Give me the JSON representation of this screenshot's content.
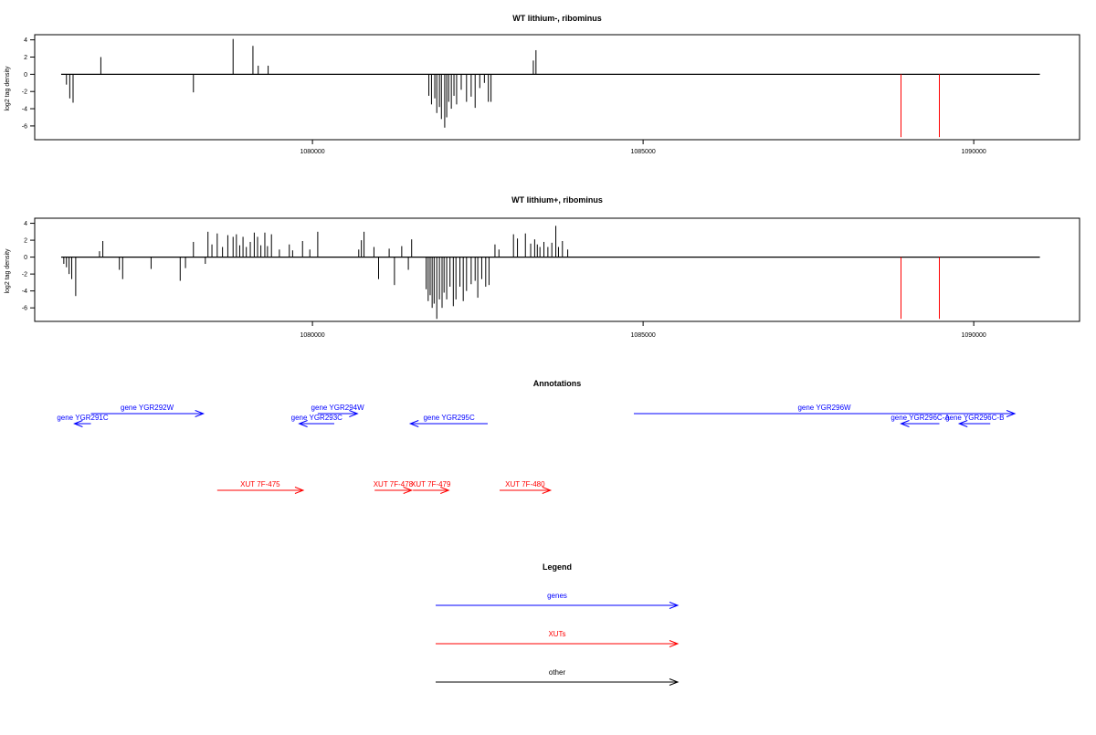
{
  "chart_data": [
    {
      "type": "bar",
      "title": "WT lithium-, ribominus",
      "xlabel": "",
      "ylabel": "log2 tag density",
      "xlim": [
        1075800,
        1091600
      ],
      "ylim": [
        -7.6,
        4.6
      ],
      "xticks": [
        1080000,
        1085000,
        1090000
      ],
      "xtick_labels": [
        "1080000",
        "1085000",
        "1090000"
      ],
      "yticks": [
        -6,
        -4,
        -2,
        0,
        2,
        4
      ],
      "ytick_labels": [
        "-6",
        "-4",
        "-2",
        "0",
        "2",
        "4"
      ],
      "baseline": {
        "x": [
          1076200,
          1091000
        ],
        "y": 0
      },
      "x": [
        1076280,
        1076330,
        1076380,
        1076800,
        1078200,
        1078800,
        1079100,
        1079180,
        1079330,
        1081760,
        1081800,
        1081850,
        1081880,
        1081920,
        1081950,
        1082000,
        1082030,
        1082060,
        1082100,
        1082140,
        1082180,
        1082250,
        1082330,
        1082400,
        1082460,
        1082530,
        1082600,
        1082660,
        1082700,
        1083340,
        1083380
      ],
      "values": [
        -1.2,
        -2.8,
        -3.3,
        2.0,
        -2.1,
        4.1,
        3.3,
        1.0,
        1.0,
        -2.5,
        -3.5,
        -2.8,
        -4.5,
        -3.8,
        -5.2,
        -6.2,
        -5.0,
        -3.2,
        -4.0,
        -2.5,
        -3.5,
        -1.8,
        -3.2,
        -2.6,
        -3.9,
        -1.6,
        -1.0,
        -3.2,
        -3.2,
        1.6,
        2.8
      ],
      "series": [
        {
          "name": "",
          "color": "#ff0000",
          "x": [
            1088900,
            1089480
          ],
          "values": [
            -7.3,
            -7.3
          ]
        }
      ]
    },
    {
      "type": "bar",
      "title": "WT lithium+, ribominus",
      "xlabel": "",
      "ylabel": "log2 tag density",
      "xlim": [
        1075800,
        1091600
      ],
      "ylim": [
        -7.6,
        4.6
      ],
      "xticks": [
        1080000,
        1085000,
        1090000
      ],
      "xtick_labels": [
        "1080000",
        "1085000",
        "1090000"
      ],
      "yticks": [
        -6,
        -4,
        -2,
        0,
        2,
        4
      ],
      "ytick_labels": [
        "-6",
        "-4",
        "-2",
        "0",
        "2",
        "4"
      ],
      "baseline": {
        "x": [
          1076200,
          1091000
        ],
        "y": 0
      },
      "x": [
        1076240,
        1076280,
        1076320,
        1076360,
        1076420,
        1076780,
        1076830,
        1077080,
        1077130,
        1077560,
        1078000,
        1078080,
        1078200,
        1078380,
        1078420,
        1078480,
        1078560,
        1078640,
        1078720,
        1078800,
        1078850,
        1078900,
        1078950,
        1079000,
        1079060,
        1079120,
        1079170,
        1079220,
        1079280,
        1079320,
        1079380,
        1079500,
        1079650,
        1079700,
        1079850,
        1079960,
        1080080,
        1080700,
        1080740,
        1080780,
        1080930,
        1081000,
        1081160,
        1081240,
        1081350,
        1081450,
        1081500,
        1081720,
        1081750,
        1081780,
        1081810,
        1081840,
        1081880,
        1081920,
        1081960,
        1081990,
        1082030,
        1082080,
        1082130,
        1082170,
        1082230,
        1082280,
        1082330,
        1082400,
        1082460,
        1082500,
        1082560,
        1082620,
        1082670,
        1082760,
        1082820,
        1083040,
        1083100,
        1083220,
        1083300,
        1083360,
        1083400,
        1083440,
        1083500,
        1083560,
        1083620,
        1083680,
        1083720,
        1083780,
        1083860
      ],
      "values": [
        -0.8,
        -1.2,
        -2.0,
        -2.6,
        -4.6,
        0.7,
        1.9,
        -1.5,
        -2.6,
        -1.4,
        -2.8,
        -1.3,
        1.8,
        -0.8,
        3.0,
        1.5,
        2.8,
        1.2,
        2.6,
        2.4,
        2.7,
        1.4,
        2.4,
        1.2,
        1.8,
        2.9,
        2.4,
        1.4,
        2.9,
        1.3,
        2.7,
        0.9,
        1.5,
        0.8,
        1.9,
        0.9,
        3.0,
        0.9,
        2.0,
        3.0,
        1.2,
        -2.6,
        1.0,
        -3.3,
        1.3,
        -1.5,
        2.1,
        -3.8,
        -5.2,
        -4.5,
        -6.0,
        -5.5,
        -7.3,
        -5.0,
        -6.0,
        -4.2,
        -5.0,
        -3.5,
        -5.8,
        -5.0,
        -3.5,
        -5.2,
        -4.0,
        -3.2,
        -2.8,
        -4.8,
        -2.6,
        -3.5,
        -3.3,
        1.5,
        0.9,
        2.7,
        2.2,
        2.8,
        1.6,
        2.1,
        1.5,
        1.2,
        1.8,
        1.2,
        1.7,
        3.7,
        1.2,
        1.9,
        0.9
      ],
      "series": [
        {
          "name": "",
          "color": "#ff0000",
          "x": [
            1088900,
            1089480
          ],
          "values": [
            -7.3,
            -7.3
          ]
        }
      ]
    }
  ],
  "annotations": {
    "title": "Annotations",
    "genes": [
      {
        "label": "gene YGR291C",
        "start": 1076400,
        "end": 1076650,
        "strand": "-",
        "row": 1
      },
      {
        "label": "gene YGR292W",
        "start": 1076650,
        "end": 1078350,
        "strand": "+",
        "row": 0
      },
      {
        "label": "gene YGR293C",
        "start": 1079800,
        "end": 1080330,
        "strand": "-",
        "row": 1
      },
      {
        "label": "gene YGR294W",
        "start": 1080080,
        "end": 1080680,
        "strand": "+",
        "row": 0
      },
      {
        "label": "gene YGR295C",
        "start": 1081480,
        "end": 1082650,
        "strand": "-",
        "row": 1
      },
      {
        "label": "gene YGR296W",
        "start": 1084860,
        "end": 1090620,
        "strand": "+",
        "row": 0
      },
      {
        "label": "gene YGR296C-A",
        "start": 1088900,
        "end": 1089480,
        "strand": "-",
        "row": 1
      },
      {
        "label": "gene YGR296C-B",
        "start": 1089780,
        "end": 1090250,
        "strand": "-",
        "row": 1
      }
    ],
    "xuts": [
      {
        "label": "XUT 7F-475",
        "start": 1078560,
        "end": 1079860,
        "strand": "+"
      },
      {
        "label": "XUT 7F-478",
        "start": 1080940,
        "end": 1081500,
        "strand": "+"
      },
      {
        "label": "XUT 7F-479",
        "start": 1081520,
        "end": 1082060,
        "strand": "+"
      },
      {
        "label": "XUT 7F-480",
        "start": 1082830,
        "end": 1083600,
        "strand": "+"
      }
    ]
  },
  "legend": {
    "title": "Legend",
    "items": [
      {
        "label": "genes",
        "color": "#0000ff"
      },
      {
        "label": "XUTs",
        "color": "#ff0000"
      },
      {
        "label": "other",
        "color": "#000000"
      }
    ]
  }
}
